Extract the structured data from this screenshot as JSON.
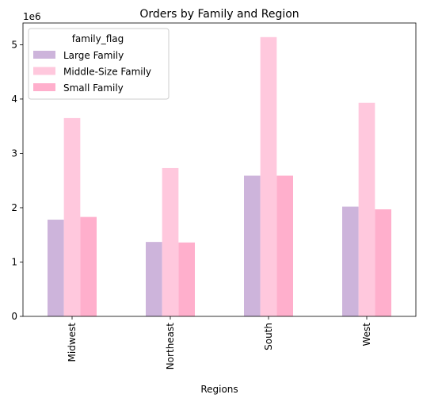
{
  "chart_data": {
    "type": "bar",
    "title": "Orders by Family and Region",
    "xlabel": "Regions",
    "ylabel": "",
    "y_offset_label": "1e6",
    "y_scale": 1000000,
    "ylim": [
      0,
      5400000
    ],
    "yticks": [
      0,
      1,
      2,
      3,
      4,
      5
    ],
    "categories": [
      "Midwest",
      "Northeast",
      "South",
      "West"
    ],
    "legend": {
      "title": "family_flag",
      "placement": "top-left"
    },
    "grid": false,
    "series": [
      {
        "name": "Large Family",
        "color": "#cdb4db",
        "values": [
          1780000,
          1370000,
          2590000,
          2020000
        ]
      },
      {
        "name": "Middle-Size Family",
        "color": "#ffc8dd",
        "values": [
          3650000,
          2730000,
          5140000,
          3930000
        ]
      },
      {
        "name": "Small Family",
        "color": "#ffafcc",
        "values": [
          1830000,
          1360000,
          2590000,
          1970000
        ]
      }
    ]
  }
}
